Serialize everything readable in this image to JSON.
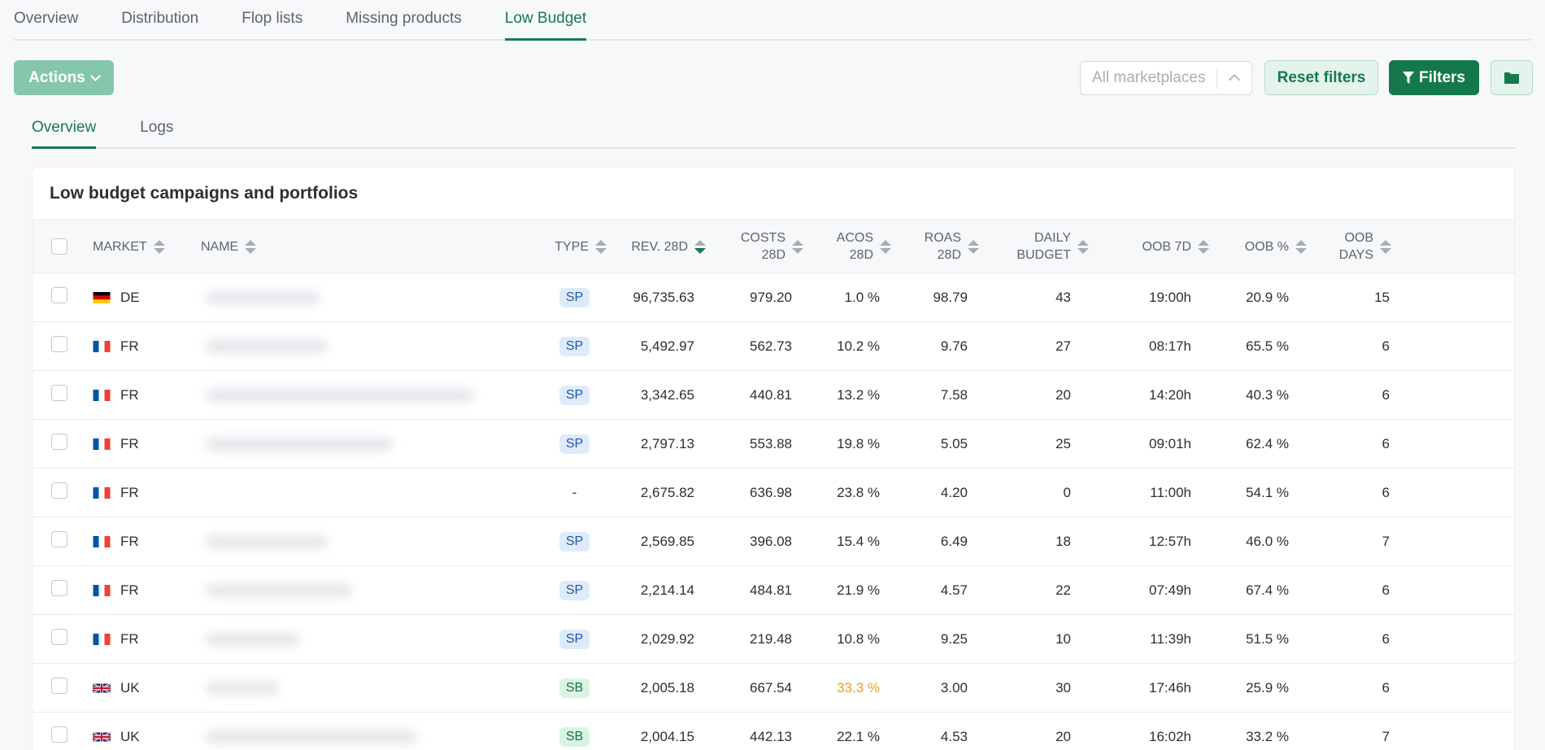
{
  "top_tabs": [
    {
      "label": "Overview",
      "active": false
    },
    {
      "label": "Distribution",
      "active": false
    },
    {
      "label": "Flop lists",
      "active": false
    },
    {
      "label": "Missing products",
      "active": false
    },
    {
      "label": "Low Budget",
      "active": true
    }
  ],
  "toolbar": {
    "actions_label": "Actions",
    "marketplace_placeholder": "All marketplaces",
    "reset_label": "Reset filters",
    "filters_label": "Filters"
  },
  "sub_tabs": [
    {
      "label": "Overview",
      "active": true
    },
    {
      "label": "Logs",
      "active": false
    }
  ],
  "card": {
    "title": "Low budget campaigns and portfolios",
    "columns": {
      "market": "MARKET",
      "name": "NAME",
      "type": "TYPE",
      "rev": "REV. 28D",
      "costs_1": "COSTS",
      "costs_2": "28D",
      "acos_1": "ACOS",
      "acos_2": "28D",
      "roas_1": "ROAS",
      "roas_2": "28D",
      "budget_1": "DAILY",
      "budget_2": "BUDGET",
      "oob7": "OOB 7D",
      "oobpct": "OOB %",
      "oobdays_1": "OOB",
      "oobdays_2": "DAYS"
    },
    "rows": [
      {
        "market": "DE",
        "flag": "de",
        "type": "SP",
        "rev": "96,735.63",
        "costs": "979.20",
        "acos": "1.0 %",
        "roas": "98.79",
        "budget": "43",
        "oob7": "19:00h",
        "oobpct": "20.9 %",
        "oobdays": "15"
      },
      {
        "market": "FR",
        "flag": "fr",
        "type": "SP",
        "rev": "5,492.97",
        "costs": "562.73",
        "acos": "10.2 %",
        "roas": "9.76",
        "budget": "27",
        "oob7": "08:17h",
        "oobpct": "65.5 %",
        "oobdays": "6"
      },
      {
        "market": "FR",
        "flag": "fr",
        "type": "SP",
        "rev": "3,342.65",
        "costs": "440.81",
        "acos": "13.2 %",
        "roas": "7.58",
        "budget": "20",
        "oob7": "14:20h",
        "oobpct": "40.3 %",
        "oobdays": "6"
      },
      {
        "market": "FR",
        "flag": "fr",
        "type": "SP",
        "rev": "2,797.13",
        "costs": "553.88",
        "acos": "19.8 %",
        "roas": "5.05",
        "budget": "25",
        "oob7": "09:01h",
        "oobpct": "62.4 %",
        "oobdays": "6"
      },
      {
        "market": "FR",
        "flag": "fr",
        "type": "-",
        "rev": "2,675.82",
        "costs": "636.98",
        "acos": "23.8 %",
        "roas": "4.20",
        "budget": "0",
        "oob7": "11:00h",
        "oobpct": "54.1 %",
        "oobdays": "6"
      },
      {
        "market": "FR",
        "flag": "fr",
        "type": "SP",
        "rev": "2,569.85",
        "costs": "396.08",
        "acos": "15.4 %",
        "roas": "6.49",
        "budget": "18",
        "oob7": "12:57h",
        "oobpct": "46.0 %",
        "oobdays": "7"
      },
      {
        "market": "FR",
        "flag": "fr",
        "type": "SP",
        "rev": "2,214.14",
        "costs": "484.81",
        "acos": "21.9 %",
        "roas": "4.57",
        "budget": "22",
        "oob7": "07:49h",
        "oobpct": "67.4 %",
        "oobdays": "6"
      },
      {
        "market": "FR",
        "flag": "fr",
        "type": "SP",
        "rev": "2,029.92",
        "costs": "219.48",
        "acos": "10.8 %",
        "roas": "9.25",
        "budget": "10",
        "oob7": "11:39h",
        "oobpct": "51.5 %",
        "oobdays": "6"
      },
      {
        "market": "UK",
        "flag": "uk",
        "type": "SB",
        "rev": "2,005.18",
        "costs": "667.54",
        "acos": "33.3 %",
        "acos_warn": true,
        "roas": "3.00",
        "budget": "30",
        "oob7": "17:46h",
        "oobpct": "25.9 %",
        "oobdays": "6"
      },
      {
        "market": "UK",
        "flag": "uk",
        "type": "SB",
        "rev": "2,004.15",
        "costs": "442.13",
        "acos": "22.1 %",
        "roas": "4.53",
        "budget": "20",
        "oob7": "16:02h",
        "oobpct": "33.2 %",
        "oobdays": "7"
      }
    ]
  },
  "colors": {
    "brand": "#167a4f",
    "warning": "#e8a021"
  }
}
